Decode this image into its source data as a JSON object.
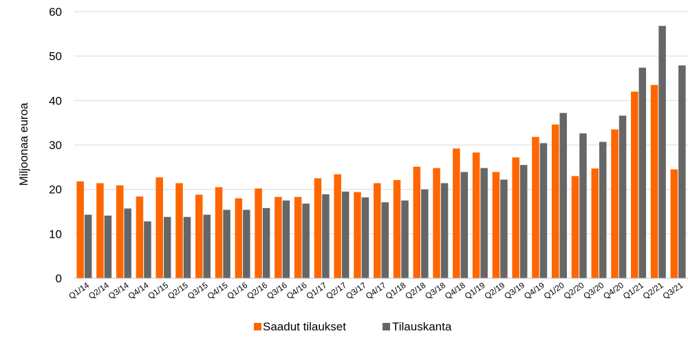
{
  "chart_data": {
    "type": "bar",
    "ylabel": "Miljoonaa euroa",
    "xlabel": "",
    "ylim": [
      0,
      60
    ],
    "yticks": [
      "0",
      "10",
      "20",
      "30",
      "40",
      "50",
      "60"
    ],
    "grid": true,
    "legend_position": "bottom",
    "categories": [
      "Q1/14",
      "Q2/14",
      "Q3/14",
      "Q4/14",
      "Q1/15",
      "Q2/15",
      "Q3/15",
      "Q4/15",
      "Q1/16",
      "Q2/16",
      "Q3/16",
      "Q4/16",
      "Q1/17",
      "Q2/17",
      "Q3/17",
      "Q4/17",
      "Q1/18",
      "Q2/18",
      "Q3/18",
      "Q4/18",
      "Q1/19",
      "Q2/19",
      "Q3/19",
      "Q4/19",
      "Q1/20",
      "Q2/20",
      "Q3/20",
      "Q4/20",
      "Q1/21",
      "Q2/21",
      "Q3/21"
    ],
    "series": [
      {
        "name": "Saadut tilaukset",
        "color": "#ff6600",
        "values": [
          21.8,
          21.4,
          20.9,
          18.4,
          22.7,
          21.4,
          18.8,
          20.5,
          18.0,
          20.2,
          18.3,
          18.3,
          22.5,
          23.4,
          19.4,
          21.4,
          22.1,
          25.1,
          24.8,
          29.2,
          28.3,
          23.9,
          27.2,
          31.8,
          34.6,
          23.0,
          24.7,
          33.5,
          42.0,
          43.5,
          24.5
        ]
      },
      {
        "name": "Tilauskanta",
        "color": "#666666",
        "values": [
          14.3,
          14.1,
          15.7,
          12.8,
          13.8,
          13.8,
          14.3,
          15.4,
          15.4,
          15.8,
          17.5,
          16.8,
          18.9,
          19.5,
          18.2,
          17.1,
          17.5,
          20.0,
          21.4,
          23.9,
          24.8,
          22.2,
          25.5,
          30.4,
          37.2,
          32.6,
          30.7,
          36.6,
          47.4,
          56.8,
          47.9
        ]
      }
    ]
  }
}
